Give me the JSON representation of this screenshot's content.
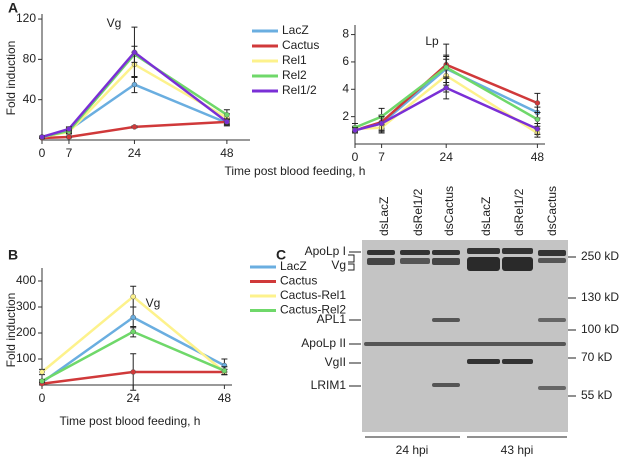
{
  "panel_labels": [
    "A",
    "B",
    "C"
  ],
  "chart_data": [
    {
      "type": "line",
      "title": "Vg",
      "xlabel": "Time  post blood feeding, h",
      "ylabel": "Fold induction",
      "x": [
        0,
        7,
        24,
        48
      ],
      "xlim": [
        0,
        54
      ],
      "xticks": [
        0,
        7,
        24,
        48
      ],
      "ylim": [
        0,
        125
      ],
      "yticks": [
        40,
        80,
        120
      ],
      "series": [
        {
          "name": "LacZ",
          "color": "#6aaee0",
          "values": [
            3,
            10,
            55,
            17
          ],
          "errors": [
            1,
            2,
            8,
            3
          ]
        },
        {
          "name": "Cactus",
          "color": "#d0393a",
          "values": [
            2,
            3,
            13,
            18
          ],
          "errors": [
            0.5,
            1,
            1,
            2
          ]
        },
        {
          "name": "Rel1",
          "color": "#fdf28c",
          "values": [
            3,
            8,
            75,
            22
          ],
          "errors": [
            1,
            2,
            12,
            4
          ]
        },
        {
          "name": "Rel2",
          "color": "#6fd86a",
          "values": [
            3,
            9,
            85,
            25
          ],
          "errors": [
            1,
            2,
            8,
            5
          ]
        },
        {
          "name": "Rel1/2",
          "color": "#7a2fd6",
          "values": [
            3,
            11,
            87,
            18
          ],
          "errors": [
            1,
            2,
            25,
            3
          ]
        }
      ]
    },
    {
      "type": "line",
      "title": "Lp",
      "x": [
        0,
        7,
        24,
        48
      ],
      "xlim": [
        0,
        50
      ],
      "xticks": [
        0,
        7,
        24,
        48
      ],
      "ylim": [
        0,
        8.7
      ],
      "yticks": [
        2,
        4,
        6,
        8
      ],
      "series": [
        {
          "color": "#6aaee0",
          "values": [
            1,
            1.5,
            5.5,
            2.3
          ],
          "errors": [
            0.2,
            0.6,
            1,
            0.4
          ]
        },
        {
          "color": "#d0393a",
          "values": [
            1,
            1.6,
            5.8,
            3
          ],
          "errors": [
            0.2,
            0.5,
            1.5,
            0.7
          ]
        },
        {
          "color": "#fdf28c",
          "values": [
            1.1,
            1.2,
            5,
            0.8
          ],
          "errors": [
            0.2,
            0.4,
            1.2,
            0.3
          ]
        },
        {
          "color": "#6fd86a",
          "values": [
            1.2,
            2,
            5.6,
            1.8
          ],
          "errors": [
            0.3,
            0.6,
            0.8,
            0.5
          ]
        },
        {
          "color": "#7a2fd6",
          "values": [
            1,
            1.5,
            4.1,
            1.1
          ],
          "errors": [
            0.2,
            0.5,
            0.8,
            0.4
          ]
        }
      ]
    },
    {
      "type": "line",
      "title": "Vg",
      "xlabel": "Time post  blood feeding, h",
      "ylabel": "Fold induction",
      "x": [
        0,
        24,
        48
      ],
      "xlim": [
        0,
        50
      ],
      "xticks": [
        0,
        24,
        48
      ],
      "ylim": [
        0,
        450
      ],
      "yticks": [
        100,
        200,
        300,
        400
      ],
      "series": [
        {
          "name": "LacZ",
          "color": "#6aaee0",
          "values": [
            10,
            260,
            75
          ],
          "errors": [
            5,
            40,
            25
          ]
        },
        {
          "name": "Cactus",
          "color": "#d0393a",
          "values": [
            5,
            50,
            50
          ],
          "errors": [
            5,
            70,
            10
          ]
        },
        {
          "name": "Cactus-Rel1",
          "color": "#fdf28c",
          "values": [
            50,
            340,
            50
          ],
          "errors": [
            10,
            40,
            10
          ]
        },
        {
          "name": "Cactus-Rel2",
          "color": "#6fd86a",
          "values": [
            15,
            205,
            55
          ],
          "errors": [
            5,
            20,
            15
          ]
        }
      ]
    }
  ],
  "blot": {
    "lanes": [
      "dsLacZ",
      "dsRel1/2",
      "dsCactus",
      "dsLacZ",
      "dsRel1/2",
      "dsCactus"
    ],
    "left_labels": [
      "ApoLp I",
      "Vg",
      "APL1",
      "ApoLp II",
      "VgII",
      "LRIM1"
    ],
    "right_labels": [
      "250 kD",
      "130 kD",
      "100 kD",
      "70 kD",
      "55 kD"
    ],
    "groups": [
      "24 hpi",
      "43 hpi"
    ]
  }
}
